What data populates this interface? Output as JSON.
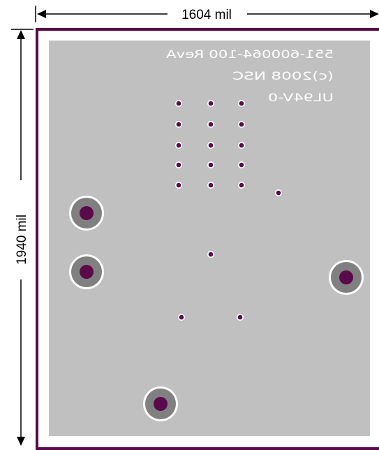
{
  "dimensions": {
    "width_label": "1604 mil",
    "height_label": "1940 mil"
  },
  "silkscreen": {
    "line1": "551-600064-100 RevA",
    "line2": "(c)2008 NSC",
    "line3": "UL94V-0"
  },
  "colors": {
    "board_outline": "#5a0a4a",
    "copper": "#c0c0c0",
    "mount_ring": "#808080",
    "drill": "#5a0a4a",
    "via": "#5a0a4a"
  },
  "icons": {
    "dimension_arrow": "arrow-icon"
  }
}
